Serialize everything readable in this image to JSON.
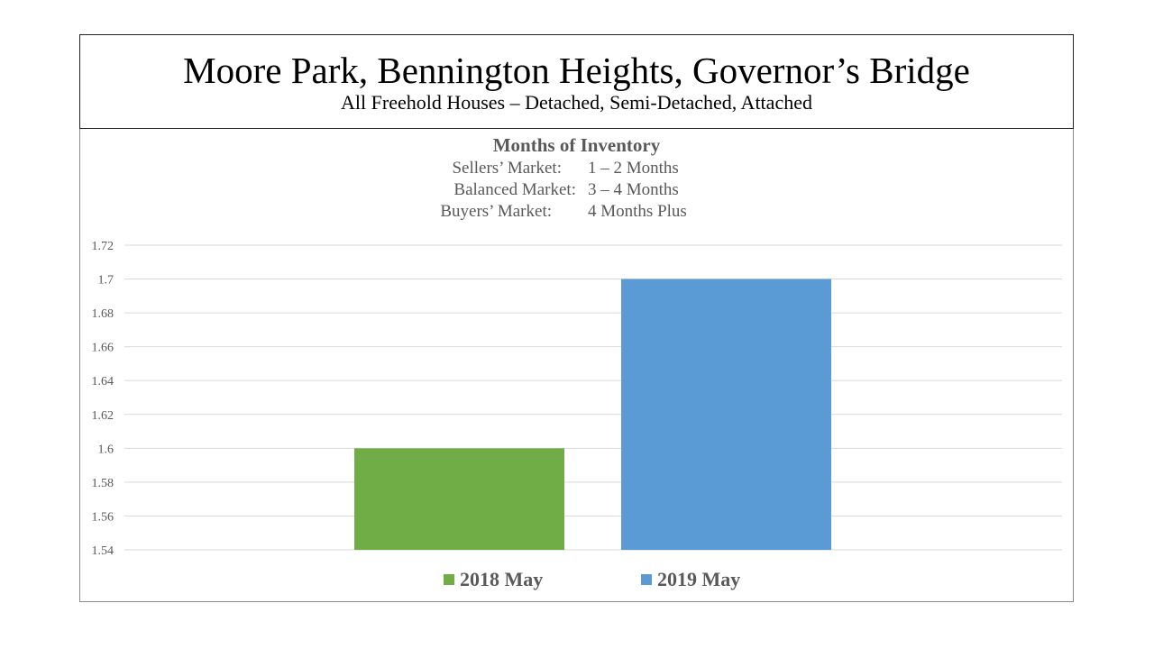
{
  "header": {
    "title": "Moore Park, Bennington Heights, Governor’s Bridge",
    "subtitle": "All Freehold Houses – Detached, Semi-Detached, Attached"
  },
  "chart_data": {
    "type": "bar",
    "title": "Months of Inventory",
    "notes": [
      {
        "label": "Sellers’ Market:",
        "value": "1 – 2 Months"
      },
      {
        "label": "Balanced Market:",
        "value": "3 – 4 Months"
      },
      {
        "label": "Buyers’ Market:",
        "value": "4 Months Plus"
      }
    ],
    "categories": [
      ""
    ],
    "series": [
      {
        "name": "2018 May",
        "values": [
          1.6
        ],
        "color": "#70ad47"
      },
      {
        "name": "2019 May",
        "values": [
          1.7
        ],
        "color": "#5b9bd5"
      }
    ],
    "ylim": [
      1.54,
      1.72
    ],
    "yticks": [
      "1.54",
      "1.56",
      "1.58",
      "1.6",
      "1.62",
      "1.64",
      "1.66",
      "1.68",
      "1.7",
      "1.72"
    ],
    "grid": true,
    "legend_position": "bottom",
    "xlabel": "",
    "ylabel": ""
  }
}
